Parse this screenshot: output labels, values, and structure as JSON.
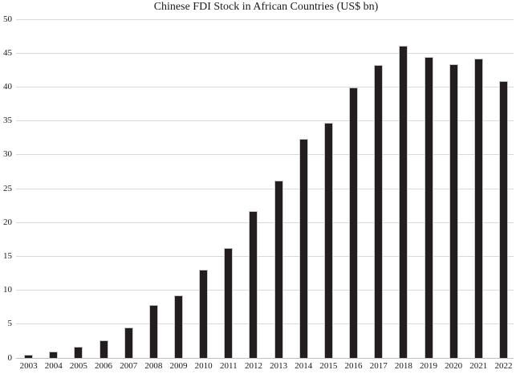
{
  "chart_data": {
    "type": "bar",
    "title": "Chinese FDI Stock in African Countries (US$ bn)",
    "categories": [
      "2003",
      "2004",
      "2005",
      "2006",
      "2007",
      "2008",
      "2009",
      "2010",
      "2011",
      "2012",
      "2013",
      "2014",
      "2015",
      "2016",
      "2017",
      "2018",
      "2019",
      "2020",
      "2021",
      "2022"
    ],
    "values": [
      0.5,
      0.9,
      1.6,
      2.6,
      4.5,
      7.8,
      9.3,
      13.0,
      16.2,
      21.7,
      26.2,
      32.4,
      34.7,
      39.9,
      43.3,
      46.1,
      44.4,
      43.4,
      44.2,
      40.9
    ],
    "xlabel": "",
    "ylabel": "",
    "ylim": [
      0,
      50
    ],
    "ytick_step": 5,
    "yticks": [
      0,
      5,
      10,
      15,
      20,
      25,
      30,
      35,
      40,
      45,
      50
    ],
    "grid": "horizontal",
    "legend_position": "none",
    "colors": {
      "bar_fill": "#221e1f",
      "bar_border": "#c9c9c9",
      "gridline": "#d9d9d9",
      "axis_line": "#bdbdbd",
      "text": "#1a1a1a",
      "background": "#ffffff"
    }
  }
}
